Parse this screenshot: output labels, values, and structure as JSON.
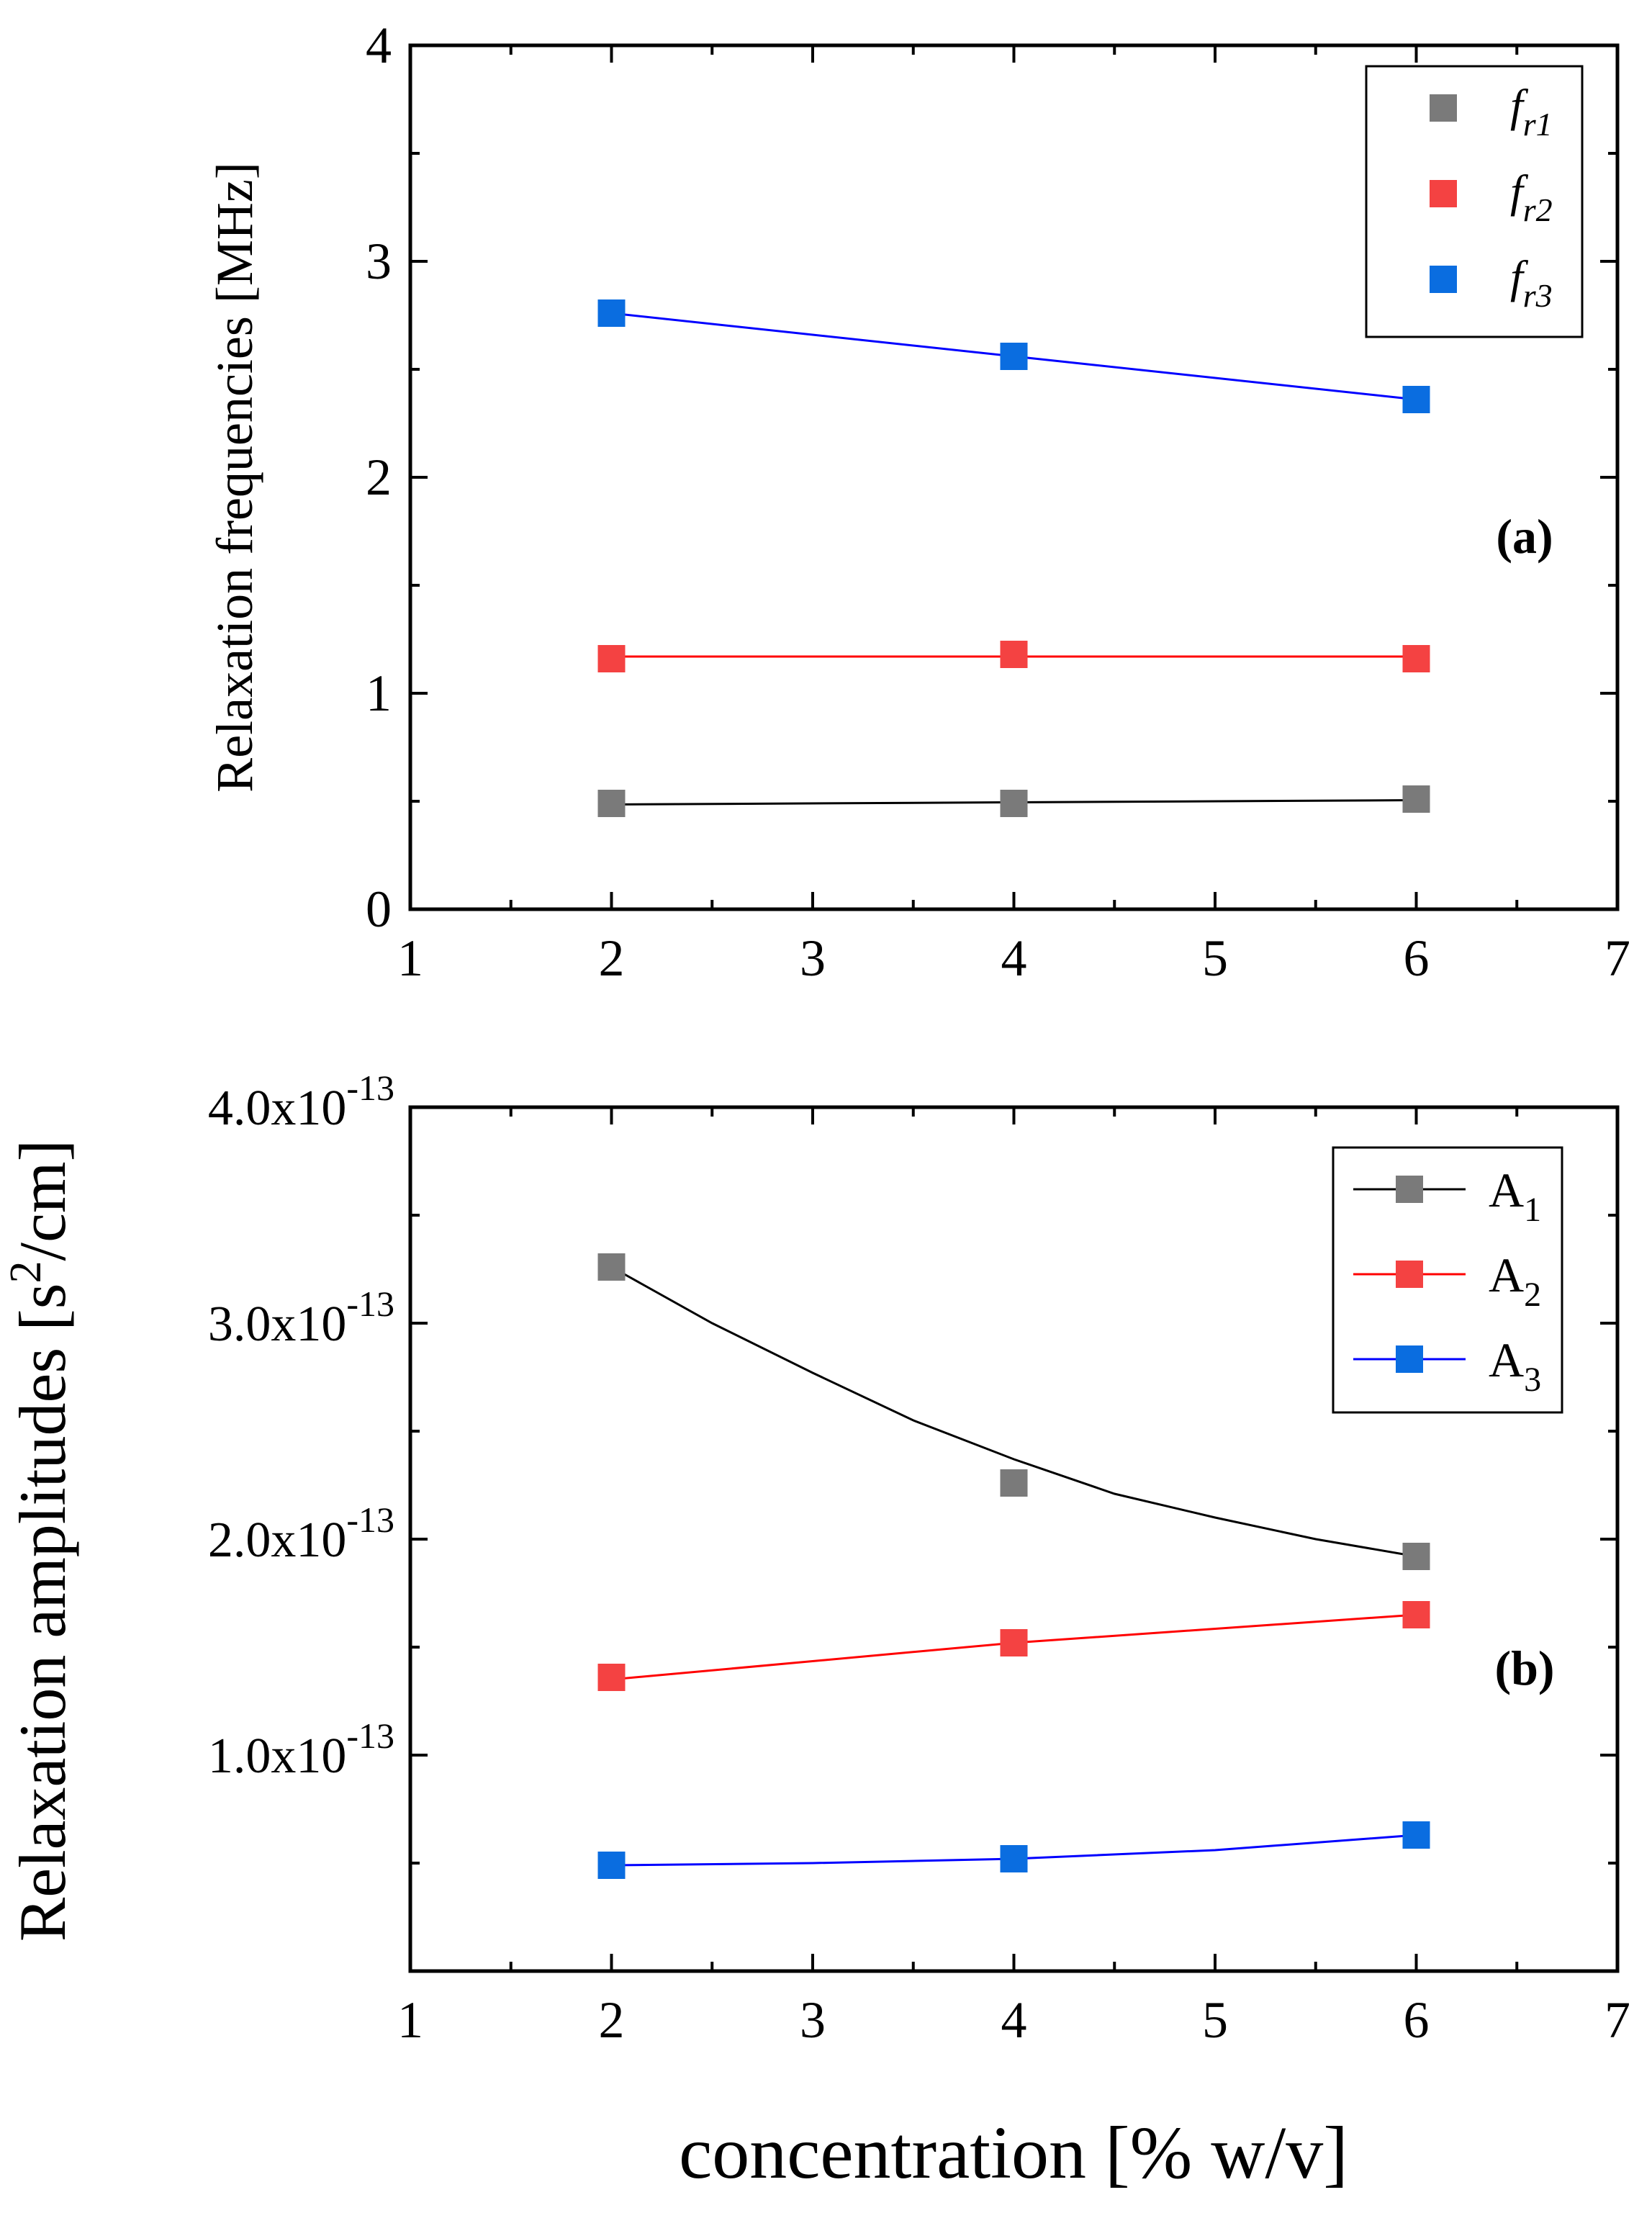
{
  "chart_data": [
    {
      "type": "scatter",
      "panel_label": "(a)",
      "xlabel": "",
      "ylabel": "Relaxation frequencies [MHz]",
      "xlim": [
        1,
        7
      ],
      "ylim": [
        0,
        4
      ],
      "xticks": [
        "1",
        "2",
        "3",
        "4",
        "5",
        "6",
        "7"
      ],
      "yticks": [
        "0",
        "1",
        "2",
        "3",
        "4"
      ],
      "x": [
        2,
        4,
        6
      ],
      "series": [
        {
          "name": "f",
          "sub": "r1",
          "color": "#7a7a7a",
          "line_color": "#000000",
          "values": [
            0.49,
            0.49,
            0.51
          ],
          "fit": [
            0.485,
            0.495,
            0.505
          ]
        },
        {
          "name": "f",
          "sub": "r2",
          "color": "#f44242",
          "line_color": "#ff0000",
          "values": [
            1.16,
            1.18,
            1.16
          ],
          "fit": [
            1.17,
            1.17,
            1.17
          ]
        },
        {
          "name": "f",
          "sub": "r3",
          "color": "#0a6de0",
          "line_color": "#0000ff",
          "values": [
            2.76,
            2.56,
            2.36
          ],
          "fit": [
            2.76,
            2.56,
            2.36
          ]
        }
      ],
      "legend": "top-right"
    },
    {
      "type": "scatter",
      "panel_label": "(b)",
      "xlabel": "concentration [% w/v]",
      "ylabel": "Relaxation amplitudes [s",
      "ylabel_sup": "2",
      "ylabel_end": "/cm]",
      "xlim": [
        1,
        7
      ],
      "ylim": [
        0,
        4e-13
      ],
      "xticks": [
        "1",
        "2",
        "3",
        "4",
        "5",
        "6",
        "7"
      ],
      "yticks": [
        {
          "value": 1e-13,
          "mantissa": "1.0x10",
          "exp": "-13"
        },
        {
          "value": 2e-13,
          "mantissa": "2.0x10",
          "exp": "-13"
        },
        {
          "value": 3e-13,
          "mantissa": "3.0x10",
          "exp": "-13"
        },
        {
          "value": 4e-13,
          "mantissa": "4.0x10",
          "exp": "-13"
        }
      ],
      "x": [
        2,
        4,
        6
      ],
      "series": [
        {
          "name": "A",
          "sub": "1",
          "color": "#7a7a7a",
          "line_color": "#000000",
          "values": [
            3.26e-13,
            2.26e-13,
            1.92e-13
          ],
          "fit_x": [
            2,
            2.5,
            3,
            3.5,
            4,
            4.5,
            5,
            5.5,
            6
          ],
          "fit": [
            3.26e-13,
            3e-13,
            2.77e-13,
            2.55e-13,
            2.37e-13,
            2.21e-13,
            2.1e-13,
            2e-13,
            1.92e-13
          ]
        },
        {
          "name": "A",
          "sub": "2",
          "color": "#f44242",
          "line_color": "#ff0000",
          "values": [
            1.36e-13,
            1.52e-13,
            1.65e-13
          ],
          "fit_x": [
            2,
            4,
            6
          ],
          "fit": [
            1.35e-13,
            1.52e-13,
            1.65e-13
          ]
        },
        {
          "name": "A",
          "sub": "3",
          "color": "#0a6de0",
          "line_color": "#0000ff",
          "values": [
            4.9e-14,
            5.2e-14,
            6.3e-14
          ],
          "fit_x": [
            2,
            3,
            4,
            5,
            6
          ],
          "fit": [
            4.9e-14,
            5e-14,
            5.2e-14,
            5.6e-14,
            6.3e-14
          ]
        }
      ],
      "legend": "top-right"
    }
  ]
}
